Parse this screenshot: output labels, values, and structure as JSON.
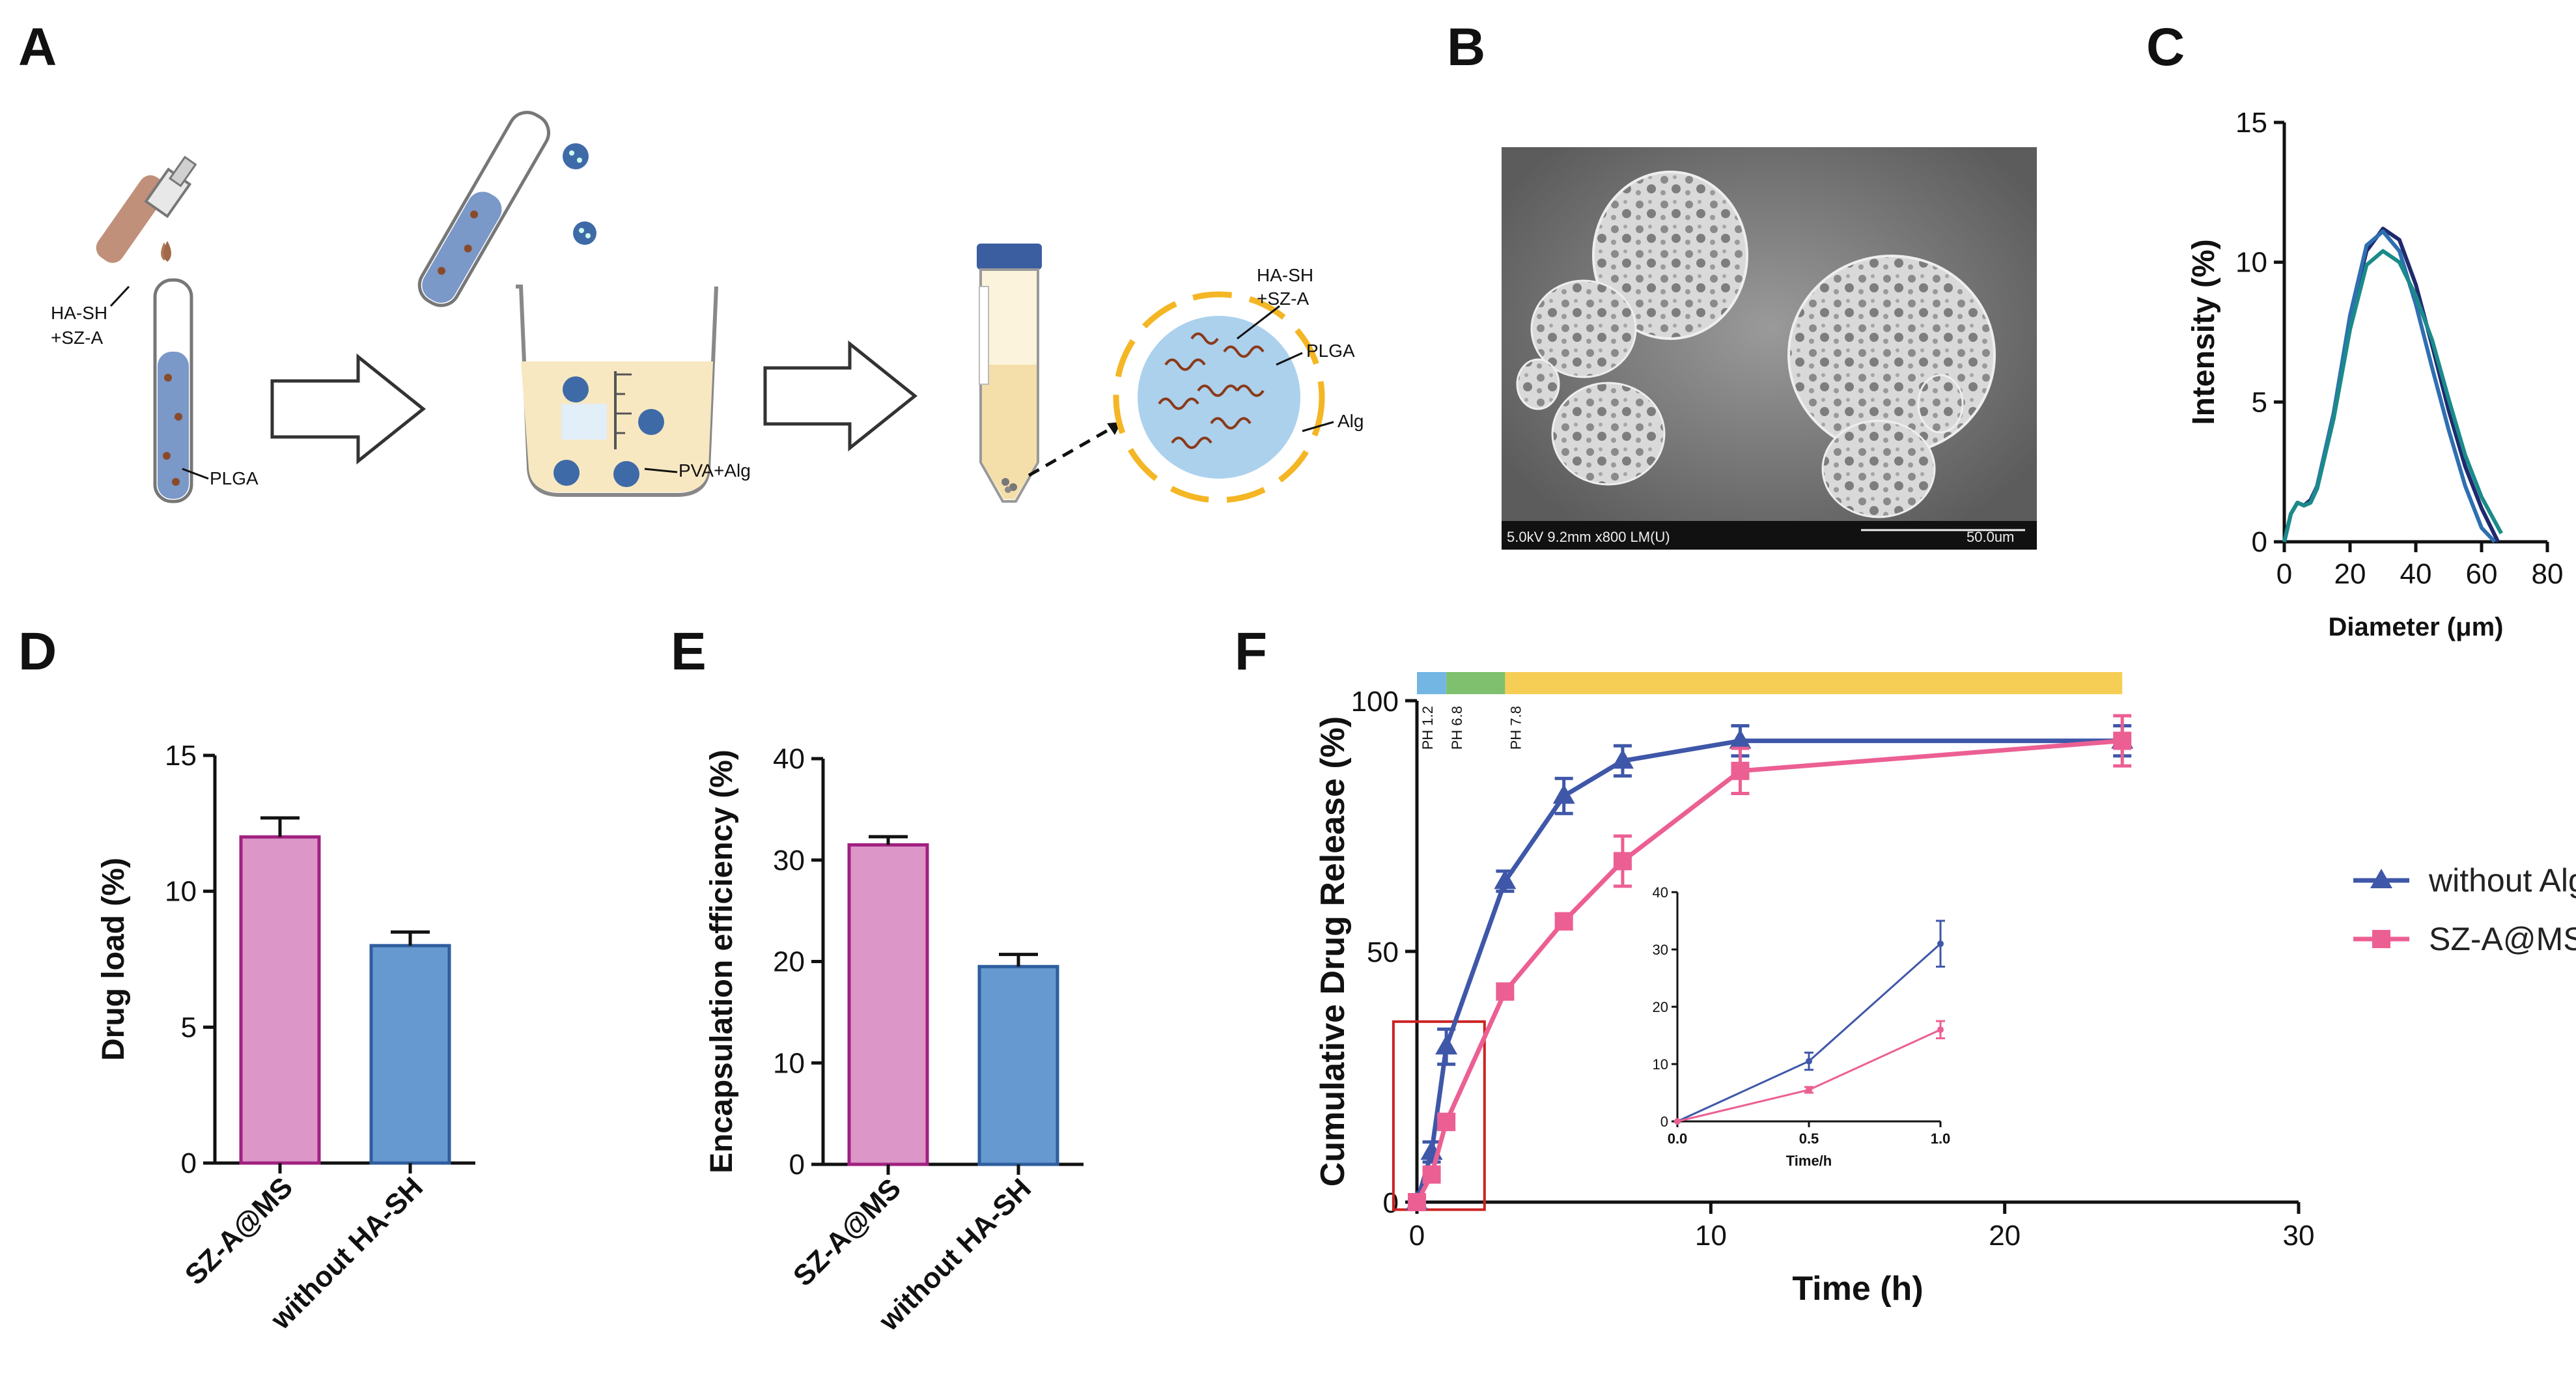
{
  "panels": {
    "A": "A",
    "B": "B",
    "C": "C",
    "D": "D",
    "E": "E",
    "F": "F"
  },
  "schematic": {
    "label_hasz_1": "HA-SH",
    "label_hasz_2": "+SZ-A",
    "label_plga": "PLGA",
    "label_pva": "PVA+Alg",
    "label_ms_hasz_1": "HA-SH",
    "label_ms_hasz_2": "+SZ-A",
    "label_ms_plga": "PLGA",
    "label_ms_alg": "Alg"
  },
  "sem": {
    "info": "5.0kV 9.2mm x800 LM(U)",
    "scale": "50.0um"
  },
  "chart_data": [
    {
      "panel": "C",
      "type": "line",
      "xlabel": "Diameter  (μm)",
      "ylabel": "Intensity (%)",
      "xlim": [
        0,
        80
      ],
      "ylim": [
        0,
        15
      ],
      "xticks": [
        0,
        20,
        40,
        60,
        80
      ],
      "yticks": [
        0,
        5,
        10,
        15
      ],
      "colors": [
        "#1f2a6e",
        "#2e6fb0",
        "#1b8a8a"
      ],
      "series": [
        {
          "x": [
            0,
            2,
            4,
            6,
            8,
            10,
            15,
            20,
            25,
            30,
            35,
            40,
            45,
            50,
            55,
            60,
            65
          ],
          "y": [
            0,
            1.0,
            1.4,
            1.3,
            1.5,
            2.0,
            4.6,
            8.0,
            10.4,
            11.2,
            10.8,
            9.2,
            7.0,
            4.7,
            2.7,
            1.2,
            0
          ]
        },
        {
          "x": [
            0,
            2,
            4,
            6,
            8,
            10,
            15,
            20,
            25,
            30,
            35,
            40,
            45,
            50,
            55,
            60,
            64
          ],
          "y": [
            0,
            1.0,
            1.4,
            1.3,
            1.4,
            2.0,
            4.6,
            8.1,
            10.6,
            11.1,
            10.4,
            8.5,
            6.2,
            4.0,
            2.0,
            0.5,
            0
          ]
        },
        {
          "x": [
            0,
            2,
            4,
            6,
            8,
            10,
            15,
            20,
            25,
            30,
            35,
            40,
            45,
            50,
            55,
            60,
            66
          ],
          "y": [
            0,
            1.0,
            1.4,
            1.3,
            1.4,
            1.9,
            4.4,
            7.6,
            9.9,
            10.4,
            10.0,
            8.8,
            7.2,
            5.1,
            3.1,
            1.6,
            0.3
          ]
        }
      ]
    },
    {
      "panel": "D",
      "type": "bar",
      "ylabel": "Drug load (%)",
      "ylim": [
        0,
        15
      ],
      "yticks": [
        0,
        5,
        10,
        15
      ],
      "categories": [
        "SZ-A@MS",
        "without HA-SH"
      ],
      "values": [
        12.0,
        8.0
      ],
      "errors": [
        0.7,
        0.5
      ],
      "colors": [
        "#dc96c8",
        "#6699cf"
      ],
      "edgecolors": [
        "#a0207f",
        "#2e5e9e"
      ]
    },
    {
      "panel": "E",
      "type": "bar",
      "ylabel": "Encapsulation efficiency (%)",
      "ylim": [
        0,
        40
      ],
      "yticks": [
        0,
        10,
        20,
        30,
        40
      ],
      "categories": [
        "SZ-A@MS",
        "without HA-SH"
      ],
      "values": [
        31.5,
        19.5
      ],
      "errors": [
        0.8,
        1.2
      ],
      "colors": [
        "#dc96c8",
        "#6699cf"
      ],
      "edgecolors": [
        "#a0207f",
        "#2e5e9e"
      ]
    },
    {
      "panel": "F",
      "type": "line",
      "xlabel": "Time (h)",
      "ylabel": "Cumulative Drug Release (%)",
      "xlim": [
        0,
        30
      ],
      "ylim": [
        0,
        100
      ],
      "xticks": [
        0,
        10,
        20,
        30
      ],
      "yticks": [
        0,
        50,
        100
      ],
      "legend_position": "right",
      "ph_segments": [
        {
          "label": "PH 1.2",
          "from": 0,
          "to": 1,
          "color": "#74b6e3"
        },
        {
          "label": "PH 6.8",
          "from": 1,
          "to": 3,
          "color": "#7ec06e"
        },
        {
          "label": "PH 7.8",
          "from": 3,
          "to": 24,
          "color": "#f6ce56"
        }
      ],
      "series": [
        {
          "name": "without Alg",
          "marker": "triangle",
          "color": "#3f57a8",
          "x": [
            0,
            0.5,
            1,
            3,
            5,
            7,
            11,
            24
          ],
          "y": [
            0,
            10,
            31,
            64,
            81,
            88,
            92,
            92
          ],
          "err": [
            0,
            2,
            3.5,
            2,
            3.5,
            3,
            3,
            3
          ]
        },
        {
          "name": "SZ-A@MS",
          "marker": "square",
          "color": "#ec5f93",
          "x": [
            0,
            0.5,
            1,
            3,
            5,
            7,
            11,
            24
          ],
          "y": [
            0,
            5.5,
            16,
            42,
            56,
            68,
            86,
            92
          ],
          "err": [
            0,
            1,
            1.5,
            1.5,
            1.5,
            5,
            4.5,
            5
          ]
        }
      ],
      "inset": {
        "xlabel": "Time/h",
        "xlim": [
          0,
          1
        ],
        "ylim": [
          0,
          40
        ],
        "xticks": [
          "0.0",
          "0.5",
          "1.0"
        ],
        "yticks": [
          0,
          10,
          20,
          30,
          40
        ],
        "series": [
          {
            "color": "#3f57a8",
            "x": [
              0,
              0.5,
              1
            ],
            "y": [
              0,
              10.5,
              31
            ],
            "err": [
              0,
              1.5,
              4
            ]
          },
          {
            "color": "#ec5f93",
            "x": [
              0,
              0.5,
              1
            ],
            "y": [
              0,
              5.5,
              16
            ],
            "err": [
              0,
              0.5,
              1.5
            ]
          }
        ]
      }
    }
  ]
}
